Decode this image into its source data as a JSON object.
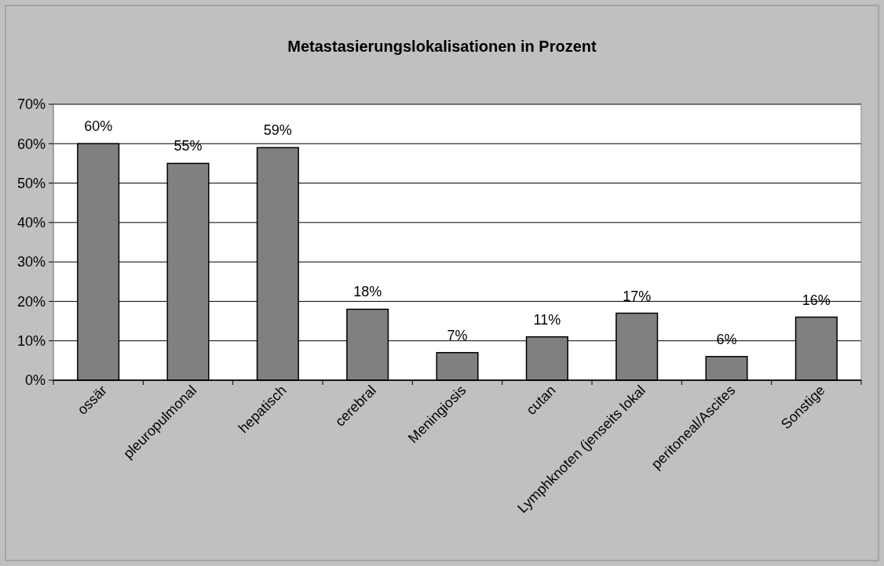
{
  "chart_data": {
    "type": "bar",
    "title": "Metastasierungslokalisationen in Prozent",
    "categories": [
      "ossär",
      "pleuropulmonal",
      "hepatisch",
      "cerebral",
      "Meningiosis",
      "cutan",
      "Lymphknoten (jenseits lokal",
      "peritoneal/Ascites",
      "Sonstige"
    ],
    "values": [
      60,
      55,
      59,
      18,
      7,
      11,
      17,
      6,
      16
    ],
    "value_labels": [
      "60%",
      "55%",
      "59%",
      "18%",
      "7%",
      "11%",
      "17%",
      "6%",
      "16%"
    ],
    "color": "#808080",
    "ylim": [
      0,
      70
    ],
    "yticks": [
      {
        "value": 0,
        "label": "0%"
      },
      {
        "value": 10,
        "label": "10%"
      },
      {
        "value": 20,
        "label": "20%"
      },
      {
        "value": 30,
        "label": "30%"
      },
      {
        "value": 40,
        "label": "40%"
      },
      {
        "value": 50,
        "label": "50%"
      },
      {
        "value": 60,
        "label": "60%"
      },
      {
        "value": 70,
        "label": "70%"
      }
    ],
    "grid": "y"
  }
}
